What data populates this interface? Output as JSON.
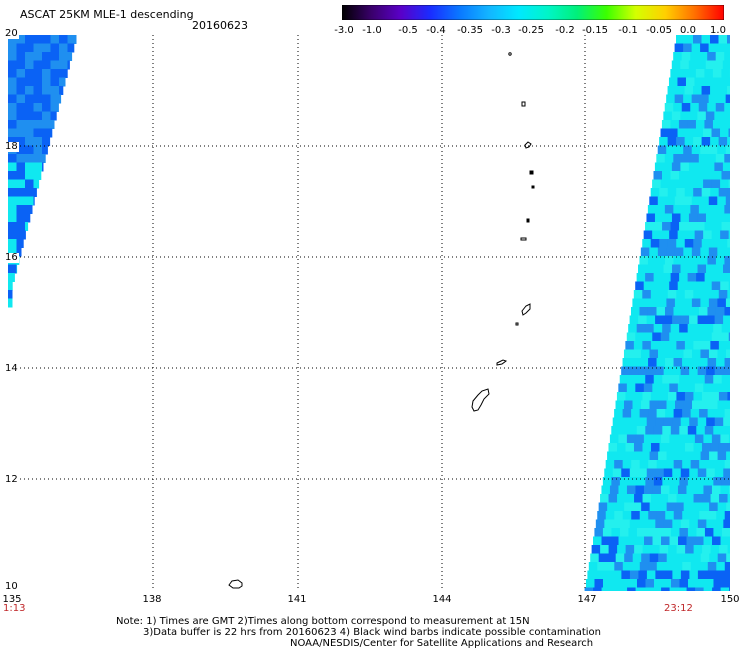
{
  "header": {
    "title": "ASCAT 25KM MLE-1 descending",
    "date": "20160623"
  },
  "colorbar": {
    "ticks": [
      "-3.0",
      "-1.0",
      "-0.5",
      "-0.4",
      "-0.35",
      "-0.3",
      "-0.25",
      "-0.2",
      "-0.15",
      "-0.1",
      "-0.05",
      "0.0",
      "1.0"
    ],
    "colors": [
      "#000000",
      "#3a006b",
      "#5a00c8",
      "#1a2cff",
      "#0a78ff",
      "#13b5ff",
      "#00e8ff",
      "#00f5c8",
      "#00f07a",
      "#3bff00",
      "#d4ff00",
      "#ffd000",
      "#ff7000",
      "#ff0000"
    ]
  },
  "map": {
    "lat_labels": [
      "20",
      "18",
      "16",
      "14",
      "12",
      "10"
    ],
    "lon_labels": [
      "135",
      "138",
      "141",
      "144",
      "147",
      "150"
    ],
    "swath_colors": {
      "deep_blue": "#0a62f5",
      "mid_blue": "#1f8ff0",
      "cyan": "#10e8f0",
      "light_cyan": "#24f0ee"
    },
    "islands_color": "#000000",
    "grid_color": "#000000"
  },
  "times": {
    "left": "1:13",
    "right": "23:12"
  },
  "notes": {
    "line1": "Note: 1) Times are GMT 2)Times along bottom correspond to measurement at 15N",
    "line2": "3)Data buffer is 22 hrs from 20160623 4) Black wind barbs indicate possible contamination",
    "line3": "NOAA/NESDIS/Center for Satellite Applications and Research"
  }
}
